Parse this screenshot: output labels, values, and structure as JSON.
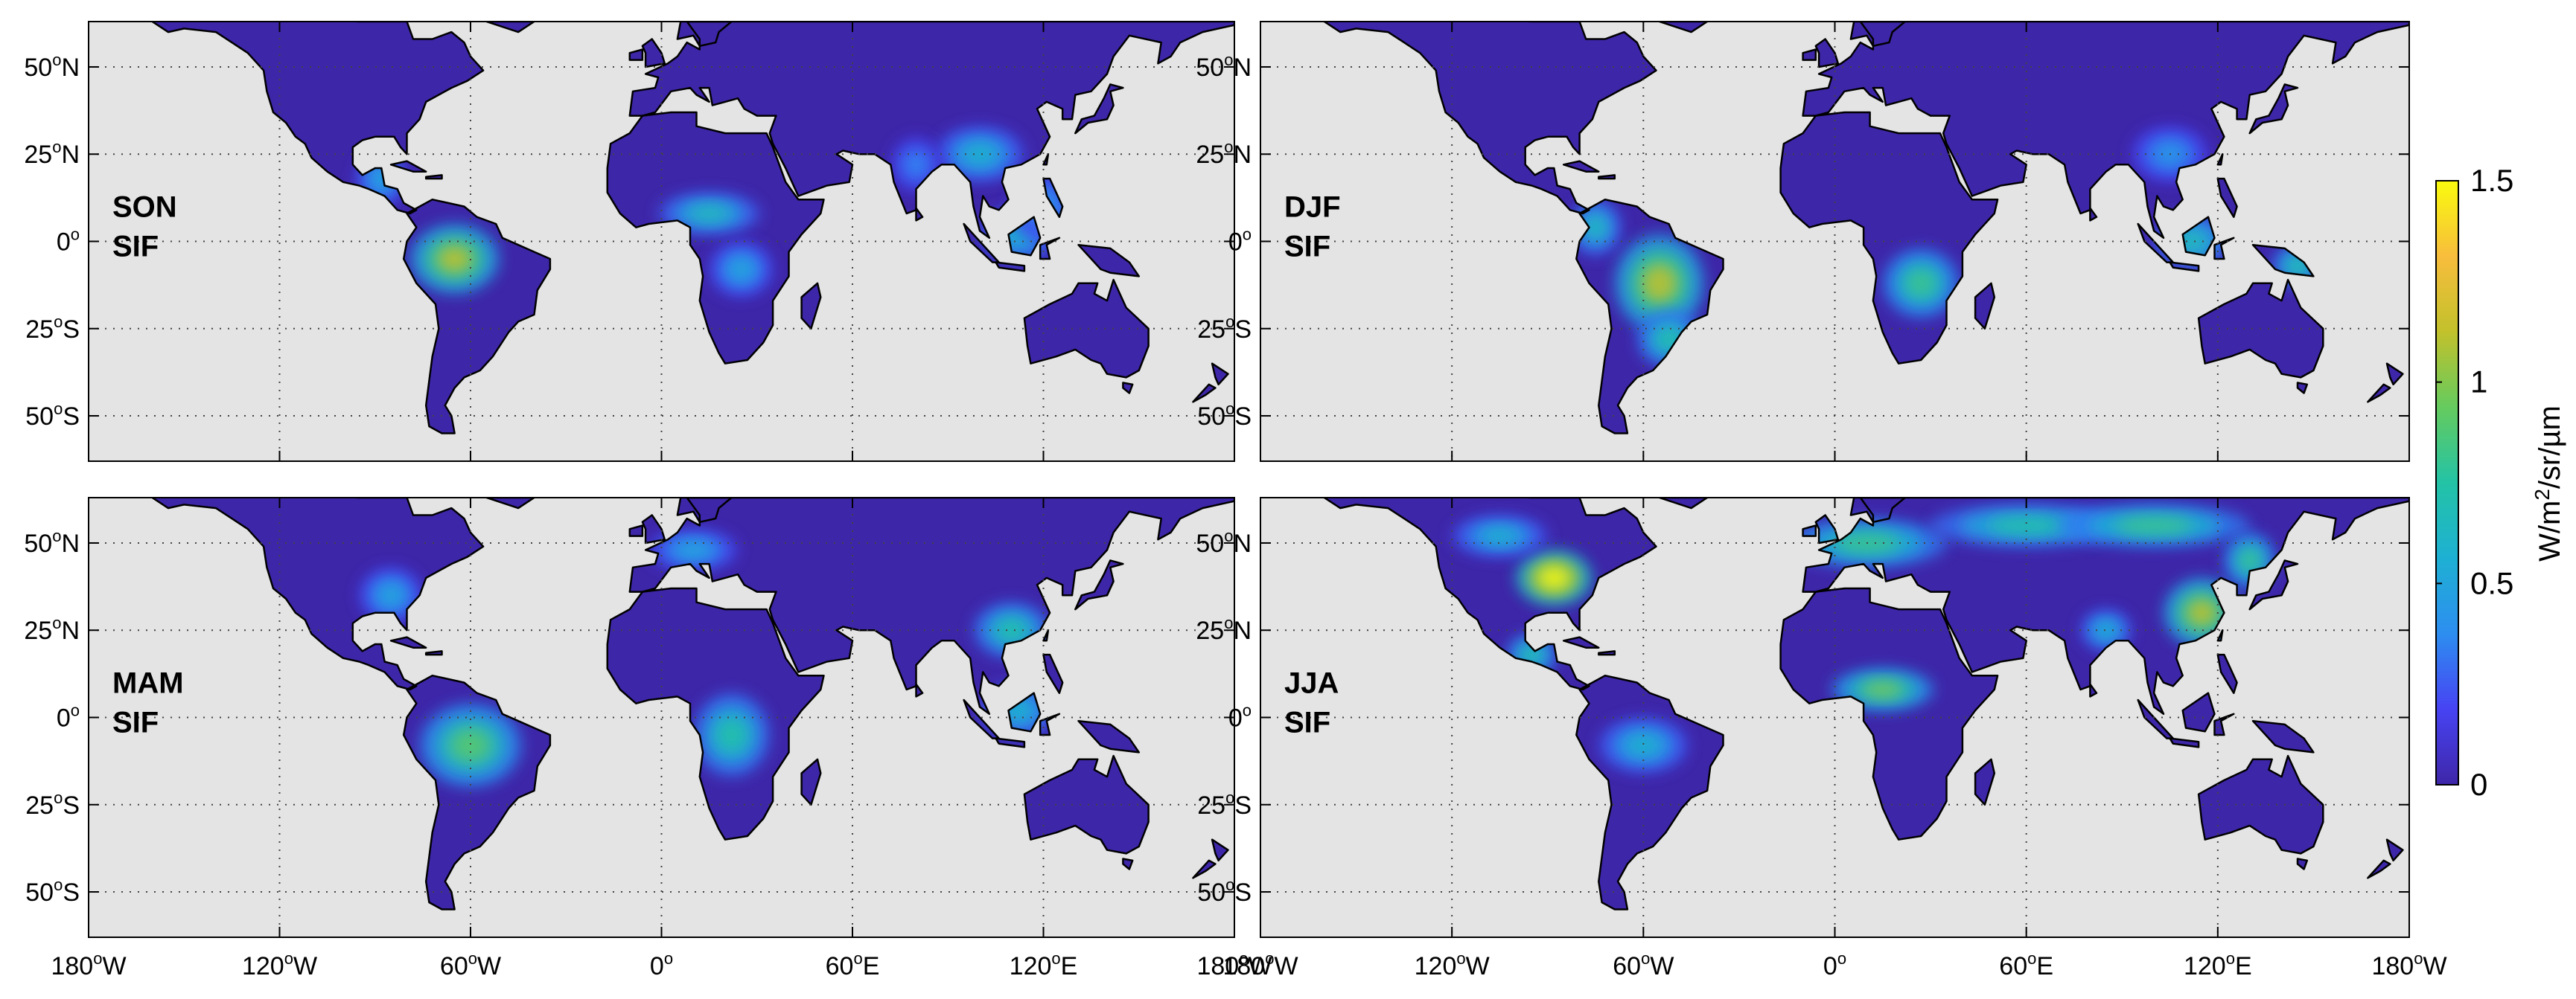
{
  "panels": [
    {
      "season": "SON",
      "variable": "SIF"
    },
    {
      "season": "DJF",
      "variable": "SIF"
    },
    {
      "season": "MAM",
      "variable": "SIF"
    },
    {
      "season": "JJA",
      "variable": "SIF"
    }
  ],
  "lat_ticks": [
    {
      "lat": 50,
      "deg": "50",
      "hemi": "N"
    },
    {
      "lat": 25,
      "deg": "25",
      "hemi": "N"
    },
    {
      "lat": 0,
      "deg": "0",
      "hemi": ""
    },
    {
      "lat": -25,
      "deg": "25",
      "hemi": "S"
    },
    {
      "lat": -50,
      "deg": "50",
      "hemi": "S"
    }
  ],
  "lon_ticks": [
    {
      "lon": -180,
      "deg": "180",
      "hemi": "W"
    },
    {
      "lon": -120,
      "deg": "120",
      "hemi": "W"
    },
    {
      "lon": -60,
      "deg": "60",
      "hemi": "W"
    },
    {
      "lon": 0,
      "deg": "0",
      "hemi": ""
    },
    {
      "lon": 60,
      "deg": "60",
      "hemi": "E"
    },
    {
      "lon": 120,
      "deg": "120",
      "hemi": "E"
    },
    {
      "lon": 180,
      "deg": "180",
      "hemi": "W"
    }
  ],
  "extent": {
    "lon_min": -180,
    "lon_max": 180,
    "lat_min": -63,
    "lat_max": 63
  },
  "colorbar": {
    "label_prefix": "W/m",
    "label_sup": "2",
    "label_suffix": "/sr/µm",
    "min": 0,
    "max": 1.5,
    "ticks": [
      {
        "value": 1.5,
        "label": "1.5"
      },
      {
        "value": 1,
        "label": "1"
      },
      {
        "value": 0.5,
        "label": "0.5"
      },
      {
        "value": 0,
        "label": "0"
      }
    ],
    "colors": [
      "#3e26a8",
      "#4743f3",
      "#2d8ef0",
      "#1eb0d3",
      "#23c3a6",
      "#65cb5e",
      "#c2c12c",
      "#f8bd3c",
      "#f9fb0e"
    ]
  },
  "colors": {
    "ocean": "#e4e4e4",
    "coast": "#000000",
    "border": "#8a8a8a",
    "grid": "#444444"
  },
  "gridlines": "dotted"
}
